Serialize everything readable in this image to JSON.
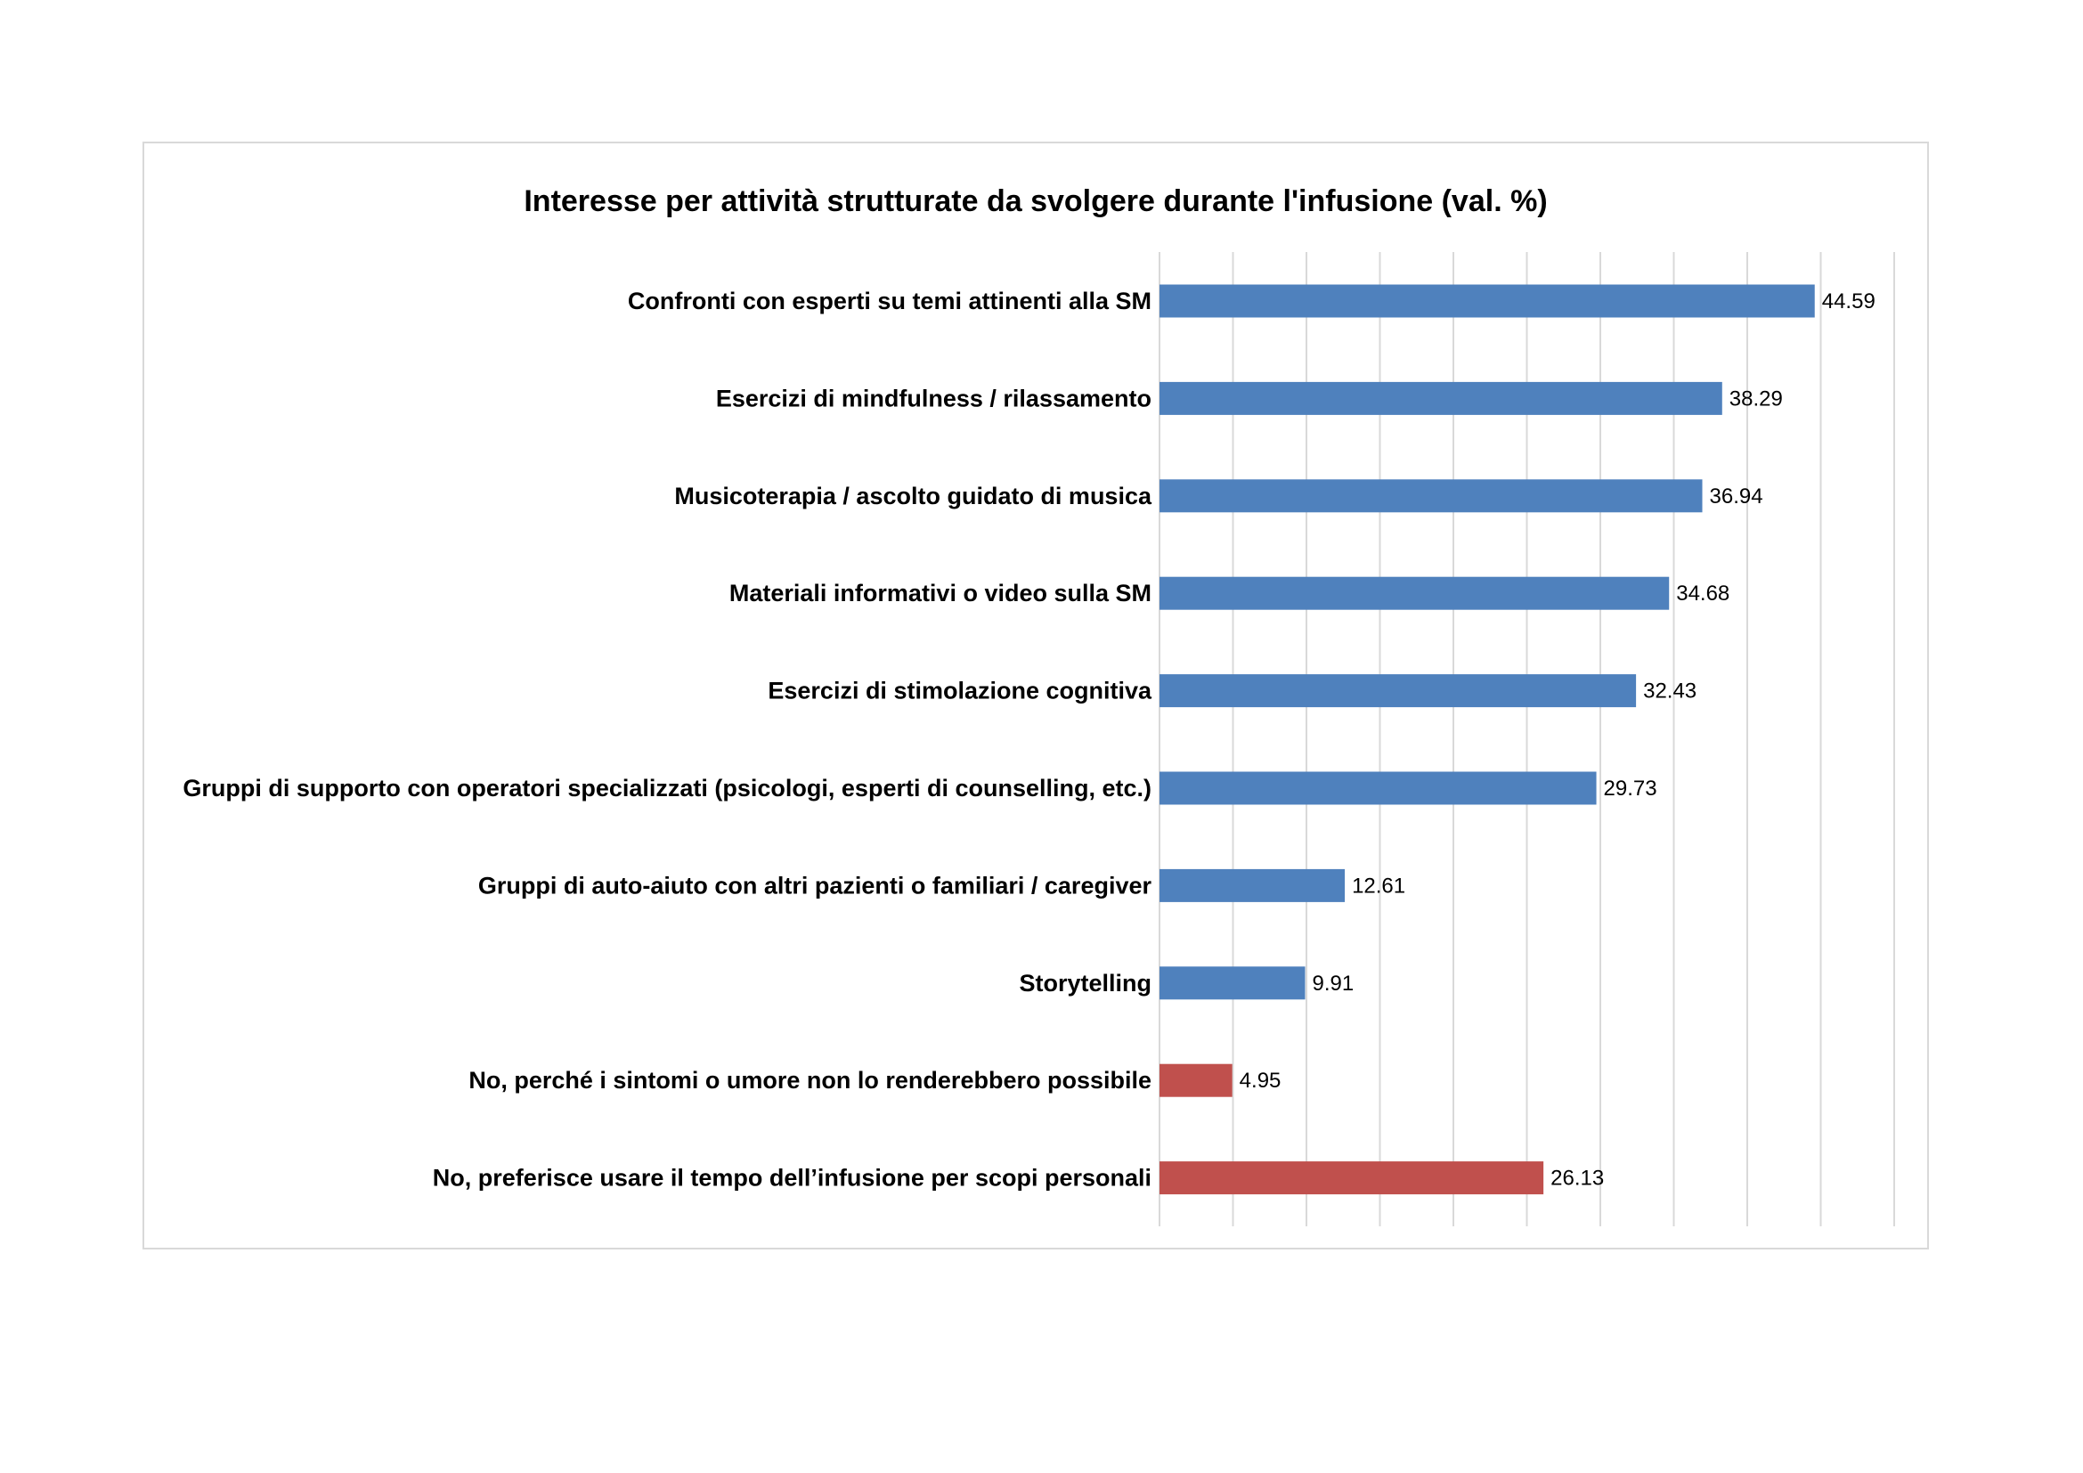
{
  "chart_data": {
    "type": "bar",
    "orientation": "horizontal",
    "title": "Interesse per attività strutturate da svolgere durante l'infusione (val. %)",
    "xlabel": "",
    "ylabel": "",
    "xlim": [
      0,
      50
    ],
    "grid": true,
    "legend": "none",
    "data_labels": true,
    "colors": {
      "blue": "#4f81bd",
      "red": "#c0504d"
    },
    "categories": [
      "Confronti con esperti su temi attinenti alla SM",
      "Esercizi di mindfulness / rilassamento",
      "Musicoterapia / ascolto guidato di musica",
      "Materiali informativi o video sulla SM",
      "Esercizi di stimolazione cognitiva",
      "Gruppi di supporto con operatori specializzati (psicologi, esperti di counselling, etc.)",
      "Gruppi di auto-aiuto con altri pazienti o familiari / caregiver",
      "Storytelling",
      "No, perché i sintomi o umore non lo renderebbero possibile",
      "No, preferisce usare il tempo dell’infusione per scopi personali"
    ],
    "values": [
      44.59,
      38.29,
      36.94,
      34.68,
      32.43,
      29.73,
      12.61,
      9.91,
      4.95,
      26.13
    ],
    "value_labels": [
      "44.59",
      "38.29",
      "36.94",
      "34.68",
      "32.43",
      "29.73",
      "12.61",
      "9.91",
      "4.95",
      "26.13"
    ],
    "bar_colors": [
      "#4f81bd",
      "#4f81bd",
      "#4f81bd",
      "#4f81bd",
      "#4f81bd",
      "#4f81bd",
      "#4f81bd",
      "#4f81bd",
      "#c0504d",
      "#c0504d"
    ]
  }
}
